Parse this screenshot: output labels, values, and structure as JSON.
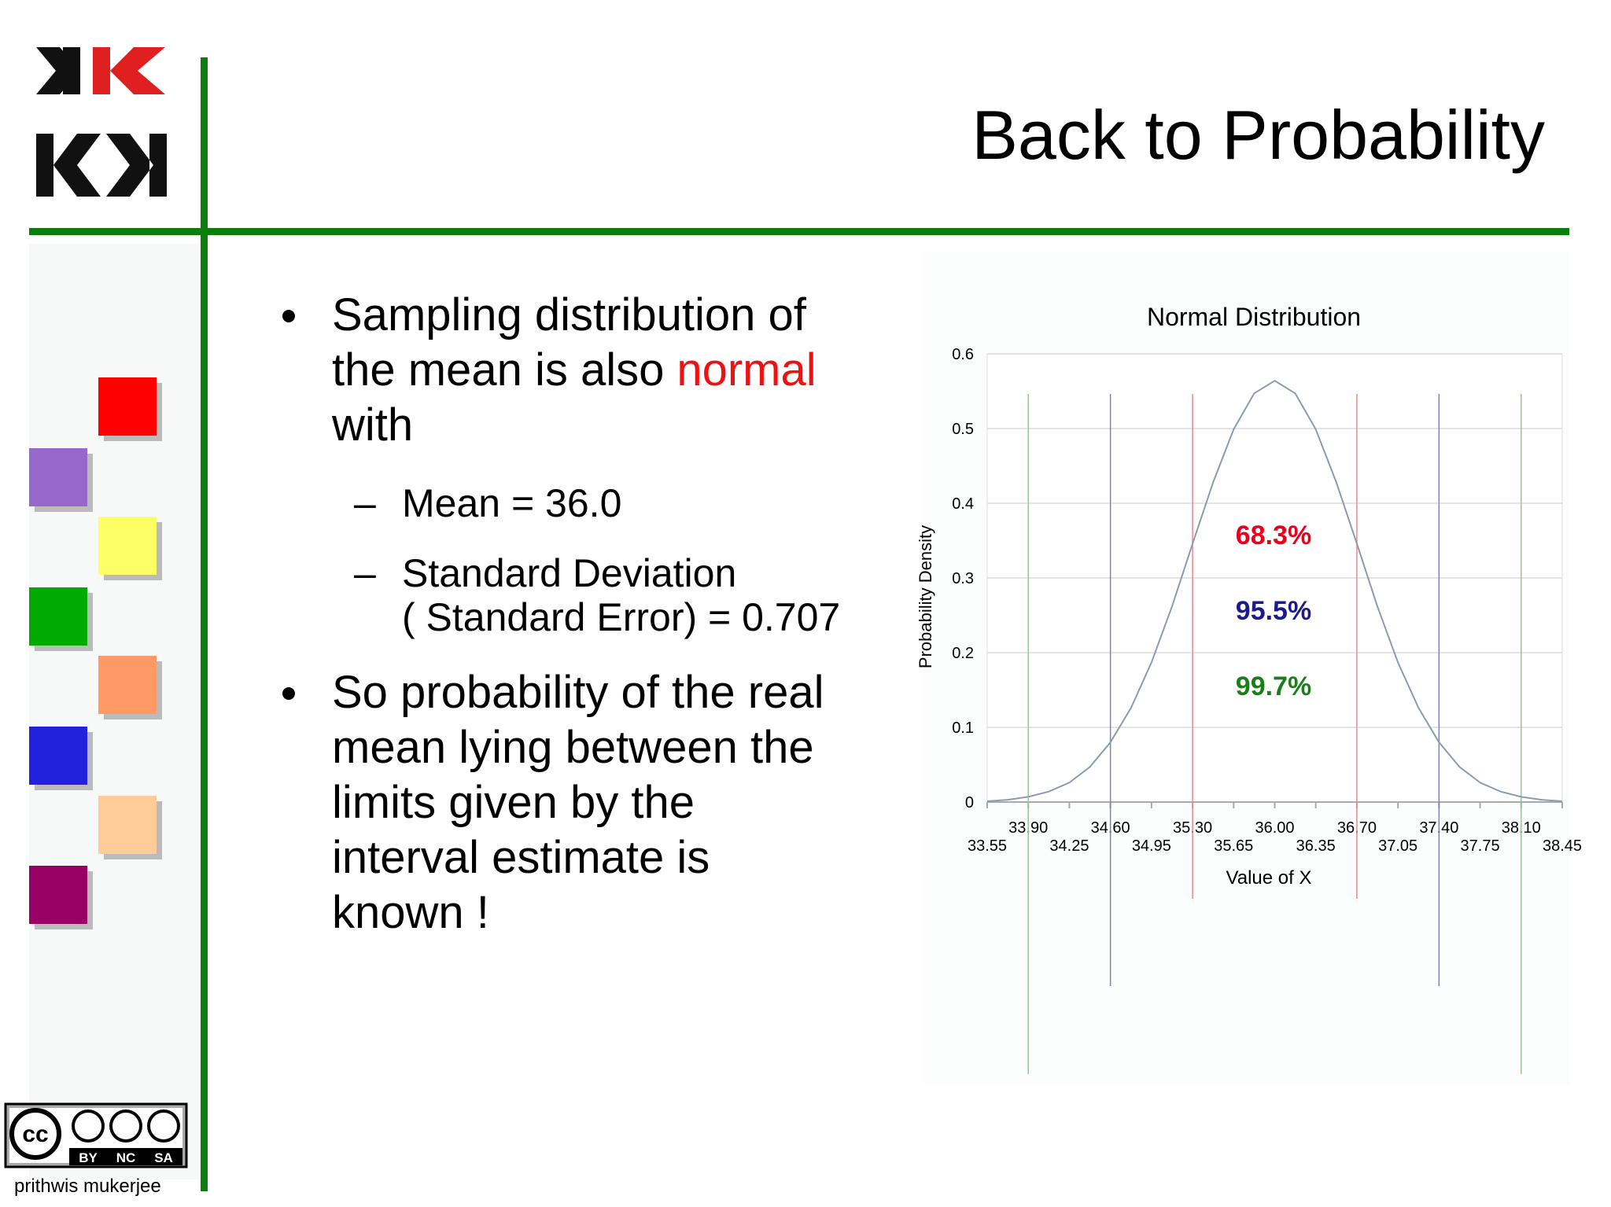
{
  "title": "Back to Probability",
  "bullets": [
    {
      "lines": [
        "Sampling distribution of",
        "the mean is also",
        "with"
      ],
      "highlight": "normal",
      "sub": [
        {
          "lines": [
            "Mean = 36.0"
          ]
        },
        {
          "lines": [
            "Standard Deviation",
            "( Standard Error) = 0.707"
          ]
        }
      ]
    },
    {
      "lines": [
        "So probability of the real",
        "mean lying between the",
        "limits given by the",
        "interval estimate is",
        "known !"
      ]
    }
  ],
  "license": {
    "cc": "cc",
    "terms": [
      "BY",
      "NC",
      "SA"
    ]
  },
  "author": "prithwis mukerjee",
  "chart_data": {
    "type": "line",
    "title": "Normal Distribution",
    "x_label": "Value of X",
    "y_label": "Probability Density",
    "x": [
      33.55,
      33.725,
      33.9,
      34.075,
      34.25,
      34.425,
      34.6,
      34.775,
      34.95,
      35.125,
      35.3,
      35.475,
      35.65,
      35.825,
      36,
      36.175,
      36.35,
      36.525,
      36.7,
      36.875,
      37.05,
      37.225,
      37.4,
      37.575,
      37.75,
      37.925,
      38.1,
      38.275,
      38.45
    ],
    "values": [
      0.001,
      0.003,
      0.007,
      0.014,
      0.026,
      0.047,
      0.08,
      0.126,
      0.187,
      0.262,
      0.346,
      0.428,
      0.499,
      0.547,
      0.564,
      0.547,
      0.499,
      0.428,
      0.346,
      0.262,
      0.187,
      0.126,
      0.08,
      0.047,
      0.026,
      0.014,
      0.007,
      0.003,
      0.001
    ],
    "color": "#8a9bb0",
    "xlim": [
      33.55,
      38.45
    ],
    "ylim": [
      0,
      0.6
    ],
    "xticks": [
      {
        "value": 33.55,
        "label": "33.55"
      },
      {
        "value": 33.9,
        "label": "33.90"
      },
      {
        "value": 34.25,
        "label": "34.25"
      },
      {
        "value": 34.6,
        "label": "34.60"
      },
      {
        "value": 34.95,
        "label": "34.95"
      },
      {
        "value": 35.3,
        "label": "35.30"
      },
      {
        "value": 35.65,
        "label": "35.65"
      },
      {
        "value": 36,
        "label": "36.00"
      },
      {
        "value": 36.35,
        "label": "36.35"
      },
      {
        "value": 36.7,
        "label": "36.70"
      },
      {
        "value": 37.05,
        "label": "37.05"
      },
      {
        "value": 37.4,
        "label": "37.40"
      },
      {
        "value": 37.75,
        "label": "37.75"
      },
      {
        "value": 38.1,
        "label": "38.10"
      },
      {
        "value": 38.45,
        "label": "38.45"
      }
    ],
    "yticks": [
      0,
      0.1,
      0.2,
      0.3,
      0.4,
      0.5,
      0.6
    ],
    "grid": true,
    "reference_lines": [
      {
        "x": [
          35.3,
          36.7
        ],
        "color": "#e88a8a"
      },
      {
        "x": [
          34.6,
          37.4
        ],
        "color": "#8080b8"
      },
      {
        "x": [
          33.9,
          38.1
        ],
        "color": "#90c890"
      }
    ],
    "annotations": [
      {
        "text": "68.3%",
        "color": "#e8001c"
      },
      {
        "text": "95.5%",
        "color": "#1c1a8c"
      },
      {
        "text": "99.7%",
        "color": "#1a7f1a"
      }
    ]
  }
}
